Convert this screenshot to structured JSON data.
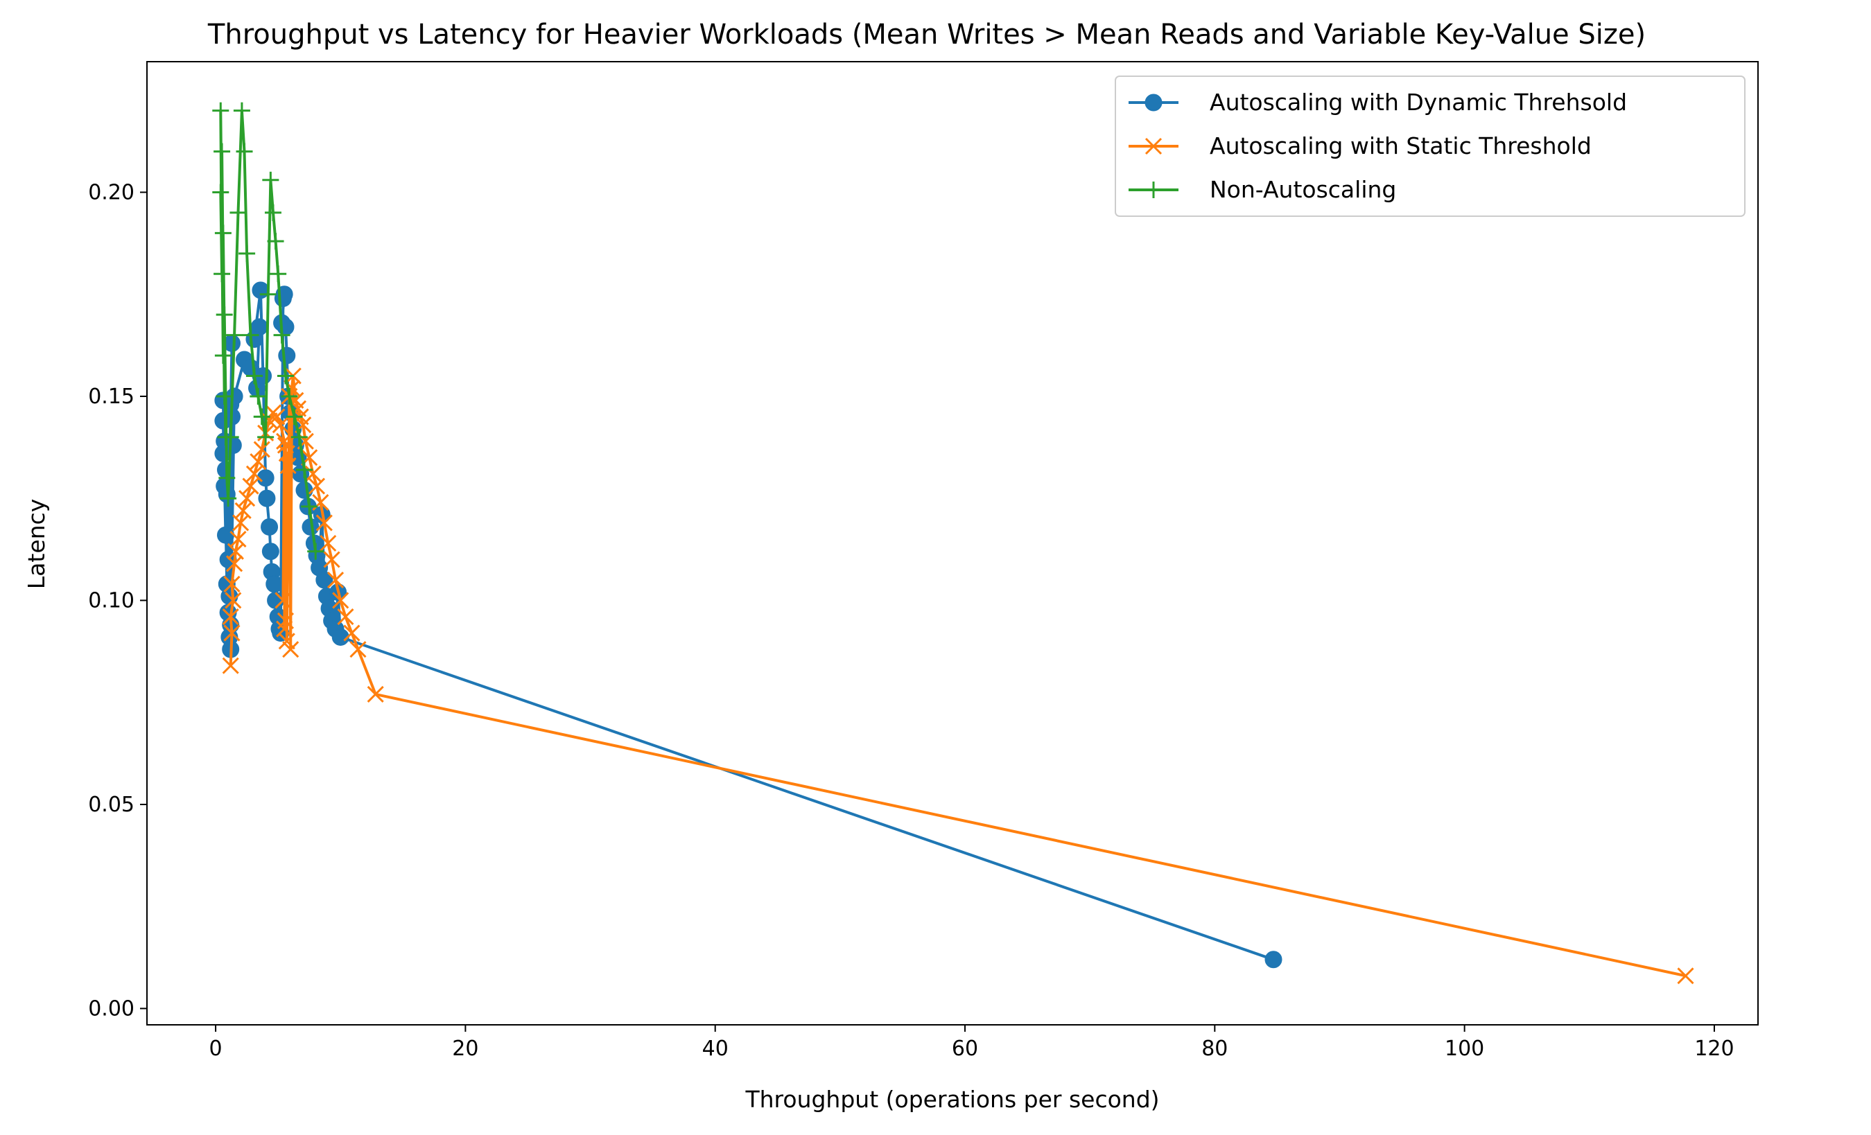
{
  "chart_data": {
    "type": "line",
    "title": "Throughput vs Latency for Heavier Workloads (Mean Writes > Mean Reads and Variable Key-Value Size)",
    "xlabel": "Throughput (operations per second)",
    "ylabel": "Latency",
    "xlim": [
      -5.5,
      123.5
    ],
    "ylim": [
      -0.004,
      0.232
    ],
    "xticks": [
      0,
      20,
      40,
      60,
      80,
      100,
      120
    ],
    "xtick_labels": [
      "0",
      "20",
      "40",
      "60",
      "80",
      "100",
      "120"
    ],
    "yticks": [
      0.0,
      0.05,
      0.1,
      0.15,
      0.2
    ],
    "ytick_labels": [
      "0.00",
      "0.05",
      "0.10",
      "0.15",
      "0.20"
    ],
    "grid": false,
    "legend_position": "top-right",
    "series": [
      {
        "name": "Autoscaling with Dynamic Threhsold",
        "color": "#1f77b4",
        "marker": "circle",
        "x": [
          0.6,
          0.7,
          0.6,
          0.8,
          0.6,
          0.9,
          0.7,
          1.0,
          0.8,
          1.1,
          0.9,
          1.2,
          1.3,
          1.0,
          1.2,
          1.4,
          1.1,
          1.3,
          1.2,
          1.5,
          2.3,
          2.8,
          3.3,
          3.5,
          3.1,
          3.6,
          3.8,
          4.0,
          4.1,
          4.3,
          4.4,
          4.5,
          4.7,
          4.8,
          5.0,
          5.1,
          5.2,
          5.4,
          5.5,
          5.3,
          5.6,
          5.7,
          5.8,
          6.0,
          6.2,
          6.4,
          6.6,
          6.8,
          7.1,
          7.4,
          7.6,
          7.9,
          8.1,
          8.3,
          8.5,
          8.7,
          8.9,
          9.1,
          9.3,
          9.6,
          9.8,
          10.0,
          84.7
        ],
        "y": [
          0.136,
          0.128,
          0.144,
          0.116,
          0.149,
          0.104,
          0.139,
          0.097,
          0.132,
          0.091,
          0.126,
          0.088,
          0.163,
          0.11,
          0.148,
          0.138,
          0.101,
          0.145,
          0.094,
          0.15,
          0.159,
          0.157,
          0.152,
          0.167,
          0.164,
          0.176,
          0.155,
          0.13,
          0.125,
          0.118,
          0.112,
          0.107,
          0.104,
          0.1,
          0.096,
          0.093,
          0.092,
          0.174,
          0.175,
          0.168,
          0.167,
          0.16,
          0.15,
          0.146,
          0.142,
          0.138,
          0.135,
          0.131,
          0.127,
          0.123,
          0.118,
          0.114,
          0.111,
          0.108,
          0.121,
          0.105,
          0.101,
          0.098,
          0.095,
          0.093,
          0.102,
          0.091,
          0.012
        ]
      },
      {
        "name": "Autoscaling with Static Threshold",
        "color": "#ff7f0e",
        "marker": "x",
        "x": [
          1.2,
          1.3,
          1.2,
          1.4,
          1.3,
          1.5,
          1.6,
          1.8,
          2.0,
          2.2,
          2.5,
          2.8,
          3.1,
          3.4,
          3.7,
          4.0,
          4.3,
          4.6,
          4.9,
          5.2,
          5.5,
          5.4,
          5.6,
          5.5,
          5.7,
          5.6,
          5.8,
          5.7,
          5.9,
          6.0,
          6.1,
          6.2,
          6.4,
          6.6,
          6.8,
          7.0,
          7.2,
          7.5,
          7.8,
          8.1,
          8.4,
          8.7,
          9.0,
          9.3,
          9.6,
          10.0,
          10.4,
          10.9,
          11.4,
          12.8,
          117.7
        ],
        "y": [
          0.084,
          0.092,
          0.096,
          0.1,
          0.104,
          0.109,
          0.112,
          0.115,
          0.119,
          0.122,
          0.125,
          0.128,
          0.131,
          0.134,
          0.137,
          0.141,
          0.144,
          0.146,
          0.145,
          0.143,
          0.139,
          0.1,
          0.138,
          0.093,
          0.136,
          0.095,
          0.133,
          0.09,
          0.15,
          0.088,
          0.152,
          0.155,
          0.149,
          0.147,
          0.145,
          0.143,
          0.139,
          0.135,
          0.131,
          0.128,
          0.124,
          0.119,
          0.114,
          0.11,
          0.105,
          0.1,
          0.096,
          0.092,
          0.088,
          0.077,
          0.008
        ]
      },
      {
        "name": "Non-Autoscaling",
        "color": "#2ca02c",
        "marker": "plus",
        "x": [
          0.4,
          0.5,
          0.4,
          0.6,
          0.5,
          0.7,
          0.6,
          0.8,
          0.7,
          0.9,
          1.0,
          1.2,
          1.5,
          1.8,
          2.1,
          2.3,
          2.5,
          2.8,
          3.1,
          3.4,
          3.7,
          4.0,
          4.2,
          4.4,
          4.6,
          4.8,
          5.0,
          5.3,
          5.6,
          5.9,
          6.3,
          6.7,
          7.1,
          7.5,
          8.0
        ],
        "y": [
          0.2,
          0.18,
          0.22,
          0.16,
          0.21,
          0.15,
          0.19,
          0.14,
          0.17,
          0.13,
          0.125,
          0.14,
          0.165,
          0.195,
          0.22,
          0.21,
          0.185,
          0.165,
          0.155,
          0.15,
          0.145,
          0.14,
          0.175,
          0.203,
          0.195,
          0.188,
          0.18,
          0.165,
          0.155,
          0.15,
          0.145,
          0.14,
          0.132,
          0.123,
          0.112
        ]
      }
    ]
  }
}
